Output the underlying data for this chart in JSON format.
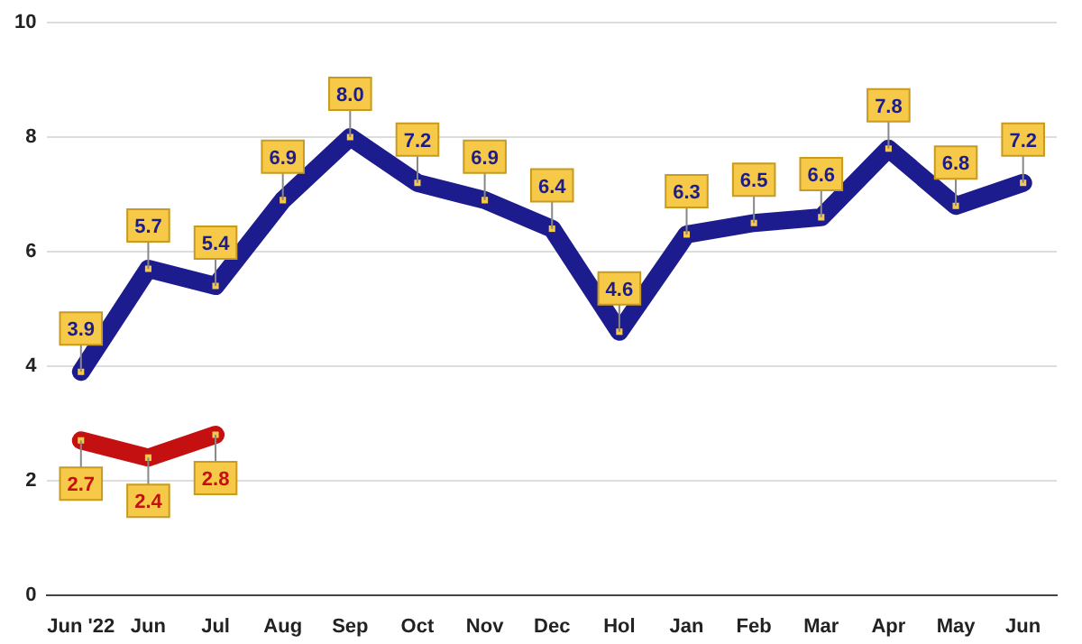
{
  "chart_data": {
    "type": "line",
    "categories": [
      "Jun '22",
      "Jun",
      "Jul",
      "Aug",
      "Sep",
      "Oct",
      "Nov",
      "Dec",
      "Hol",
      "Jan",
      "Feb",
      "Mar",
      "Apr",
      "May",
      "Jun"
    ],
    "series": [
      {
        "color": "#1c1c8f",
        "values": [
          3.9,
          5.7,
          5.4,
          6.9,
          8.0,
          7.2,
          6.9,
          6.4,
          4.6,
          6.3,
          6.5,
          6.6,
          7.8,
          6.8,
          7.2
        ],
        "value_labels": [
          "3.9",
          "5.7",
          "5.4",
          "6.9",
          "8.0",
          "7.2",
          "6.9",
          "6.4",
          "4.6",
          "6.3",
          "6.5",
          "6.6",
          "7.8",
          "6.8",
          "7.2"
        ]
      },
      {
        "color": "#c41010",
        "values": [
          2.7,
          2.4,
          2.8,
          null,
          null,
          null,
          null,
          null,
          null,
          null,
          null,
          null,
          null,
          null,
          null
        ],
        "value_labels": [
          "2.7",
          "2.4",
          "2.8",
          null,
          null,
          null,
          null,
          null,
          null,
          null,
          null,
          null,
          null,
          null,
          null
        ]
      }
    ],
    "ylim": [
      0,
      10
    ],
    "yticks": [
      0,
      2,
      4,
      6,
      8,
      10
    ],
    "grid": "y",
    "marker": "square",
    "line_style": "solid",
    "legend": false
  }
}
